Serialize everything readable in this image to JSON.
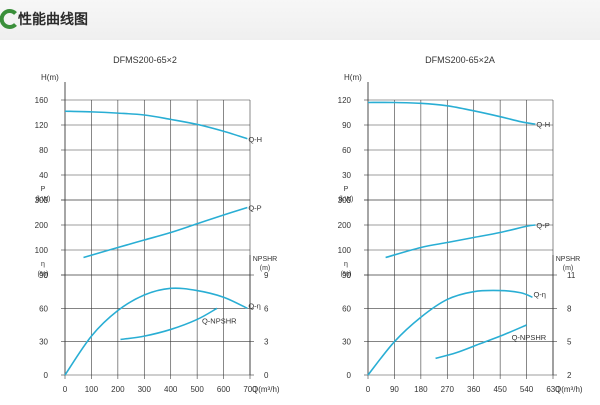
{
  "header": {
    "title": "性能曲线图",
    "icon": "ring-icon",
    "accent_color": "#3a8f3a"
  },
  "chart_data": [
    {
      "type": "line",
      "title": "DFMS200-65×2",
      "line_color": "#29aed4",
      "grid_color": "#3a3a3a",
      "xlabel": "Q(m³/h)",
      "xlim": [
        0,
        750
      ],
      "x_ticks": [
        "0",
        "100",
        "200",
        "300",
        "400",
        "500",
        "600",
        "700"
      ],
      "panels": [
        {
          "id": "H",
          "label": "H(m)",
          "ylim": [
            0,
            160
          ],
          "ticks": [
            "0",
            "40",
            "80",
            "120",
            "160"
          ]
        },
        {
          "id": "P",
          "label": [
            "P",
            "(kW)"
          ],
          "ylim": [
            0,
            300
          ],
          "ticks": [
            "0",
            "100",
            "200",
            "300"
          ]
        },
        {
          "id": "E",
          "label": [
            "η",
            "(%)"
          ],
          "ylim": [
            0,
            90
          ],
          "ticks": [
            "0",
            "30",
            "60",
            "90"
          ],
          "right_label": [
            "NPSHR",
            "(m)"
          ],
          "right_ylim": [
            0,
            9
          ],
          "right_ticks": [
            "0",
            "3",
            "6",
            "9"
          ]
        }
      ],
      "series": [
        {
          "name": "Q-H",
          "panel": "H",
          "axis": "left",
          "x": [
            0,
            100,
            200,
            300,
            400,
            500,
            600,
            690
          ],
          "y": [
            142,
            141,
            139,
            136,
            129,
            121,
            110,
            98
          ]
        },
        {
          "name": "Q-P",
          "panel": "P",
          "axis": "left",
          "x": [
            70,
            200,
            300,
            400,
            500,
            600,
            690
          ],
          "y": [
            70,
            110,
            140,
            170,
            205,
            240,
            270
          ]
        },
        {
          "name": "Q-η",
          "panel": "E",
          "axis": "left",
          "x": [
            0,
            100,
            200,
            300,
            400,
            500,
            600,
            690
          ],
          "y": [
            0,
            35,
            58,
            72,
            78,
            76,
            70,
            60
          ]
        },
        {
          "name": "Q-NPSHR",
          "panel": "E",
          "axis": "right",
          "x": [
            210,
            300,
            400,
            500,
            575
          ],
          "y": [
            3.2,
            3.5,
            4.1,
            5.0,
            6.0
          ]
        }
      ]
    },
    {
      "type": "line",
      "title": "DFMS200-65×2A",
      "line_color": "#29aed4",
      "grid_color": "#3a3a3a",
      "xlabel": "Q(m³/h)",
      "xlim": [
        0,
        630
      ],
      "x_ticks": [
        "0",
        "90",
        "180",
        "270",
        "360",
        "450",
        "540",
        "630"
      ],
      "panels": [
        {
          "id": "H",
          "label": "H(m)",
          "ylim": [
            0,
            120
          ],
          "ticks": [
            "0",
            "30",
            "60",
            "90",
            "120"
          ]
        },
        {
          "id": "P",
          "label": [
            "P",
            "(kW)"
          ],
          "ylim": [
            0,
            300
          ],
          "ticks": [
            "0",
            "100",
            "200",
            "300"
          ]
        },
        {
          "id": "E",
          "label": [
            "η",
            "(%)"
          ],
          "ylim": [
            0,
            90
          ],
          "ticks": [
            "0",
            "30",
            "60",
            "90"
          ],
          "right_label": [
            "NPSHR",
            "(m)"
          ],
          "right_ylim": [
            2,
            11
          ],
          "right_ticks": [
            "2",
            "5",
            "8",
            "11"
          ]
        }
      ],
      "series": [
        {
          "name": "Q-H",
          "panel": "H",
          "axis": "left",
          "x": [
            0,
            90,
            180,
            270,
            360,
            450,
            520,
            570
          ],
          "y": [
            117,
            117,
            116,
            113,
            107,
            100,
            94,
            91
          ]
        },
        {
          "name": "Q-P",
          "panel": "P",
          "axis": "left",
          "x": [
            60,
            180,
            270,
            360,
            450,
            540,
            570
          ],
          "y": [
            70,
            110,
            130,
            150,
            170,
            195,
            200
          ]
        },
        {
          "name": "Q-η",
          "panel": "E",
          "axis": "left",
          "x": [
            0,
            90,
            180,
            270,
            360,
            450,
            520,
            560
          ],
          "y": [
            0,
            30,
            52,
            68,
            75,
            76,
            74,
            70
          ]
        },
        {
          "name": "Q-NPSHR",
          "panel": "E",
          "axis": "right",
          "x": [
            230,
            300,
            380,
            460,
            540
          ],
          "y": [
            3.5,
            4.0,
            4.8,
            5.6,
            6.5
          ]
        }
      ]
    }
  ]
}
